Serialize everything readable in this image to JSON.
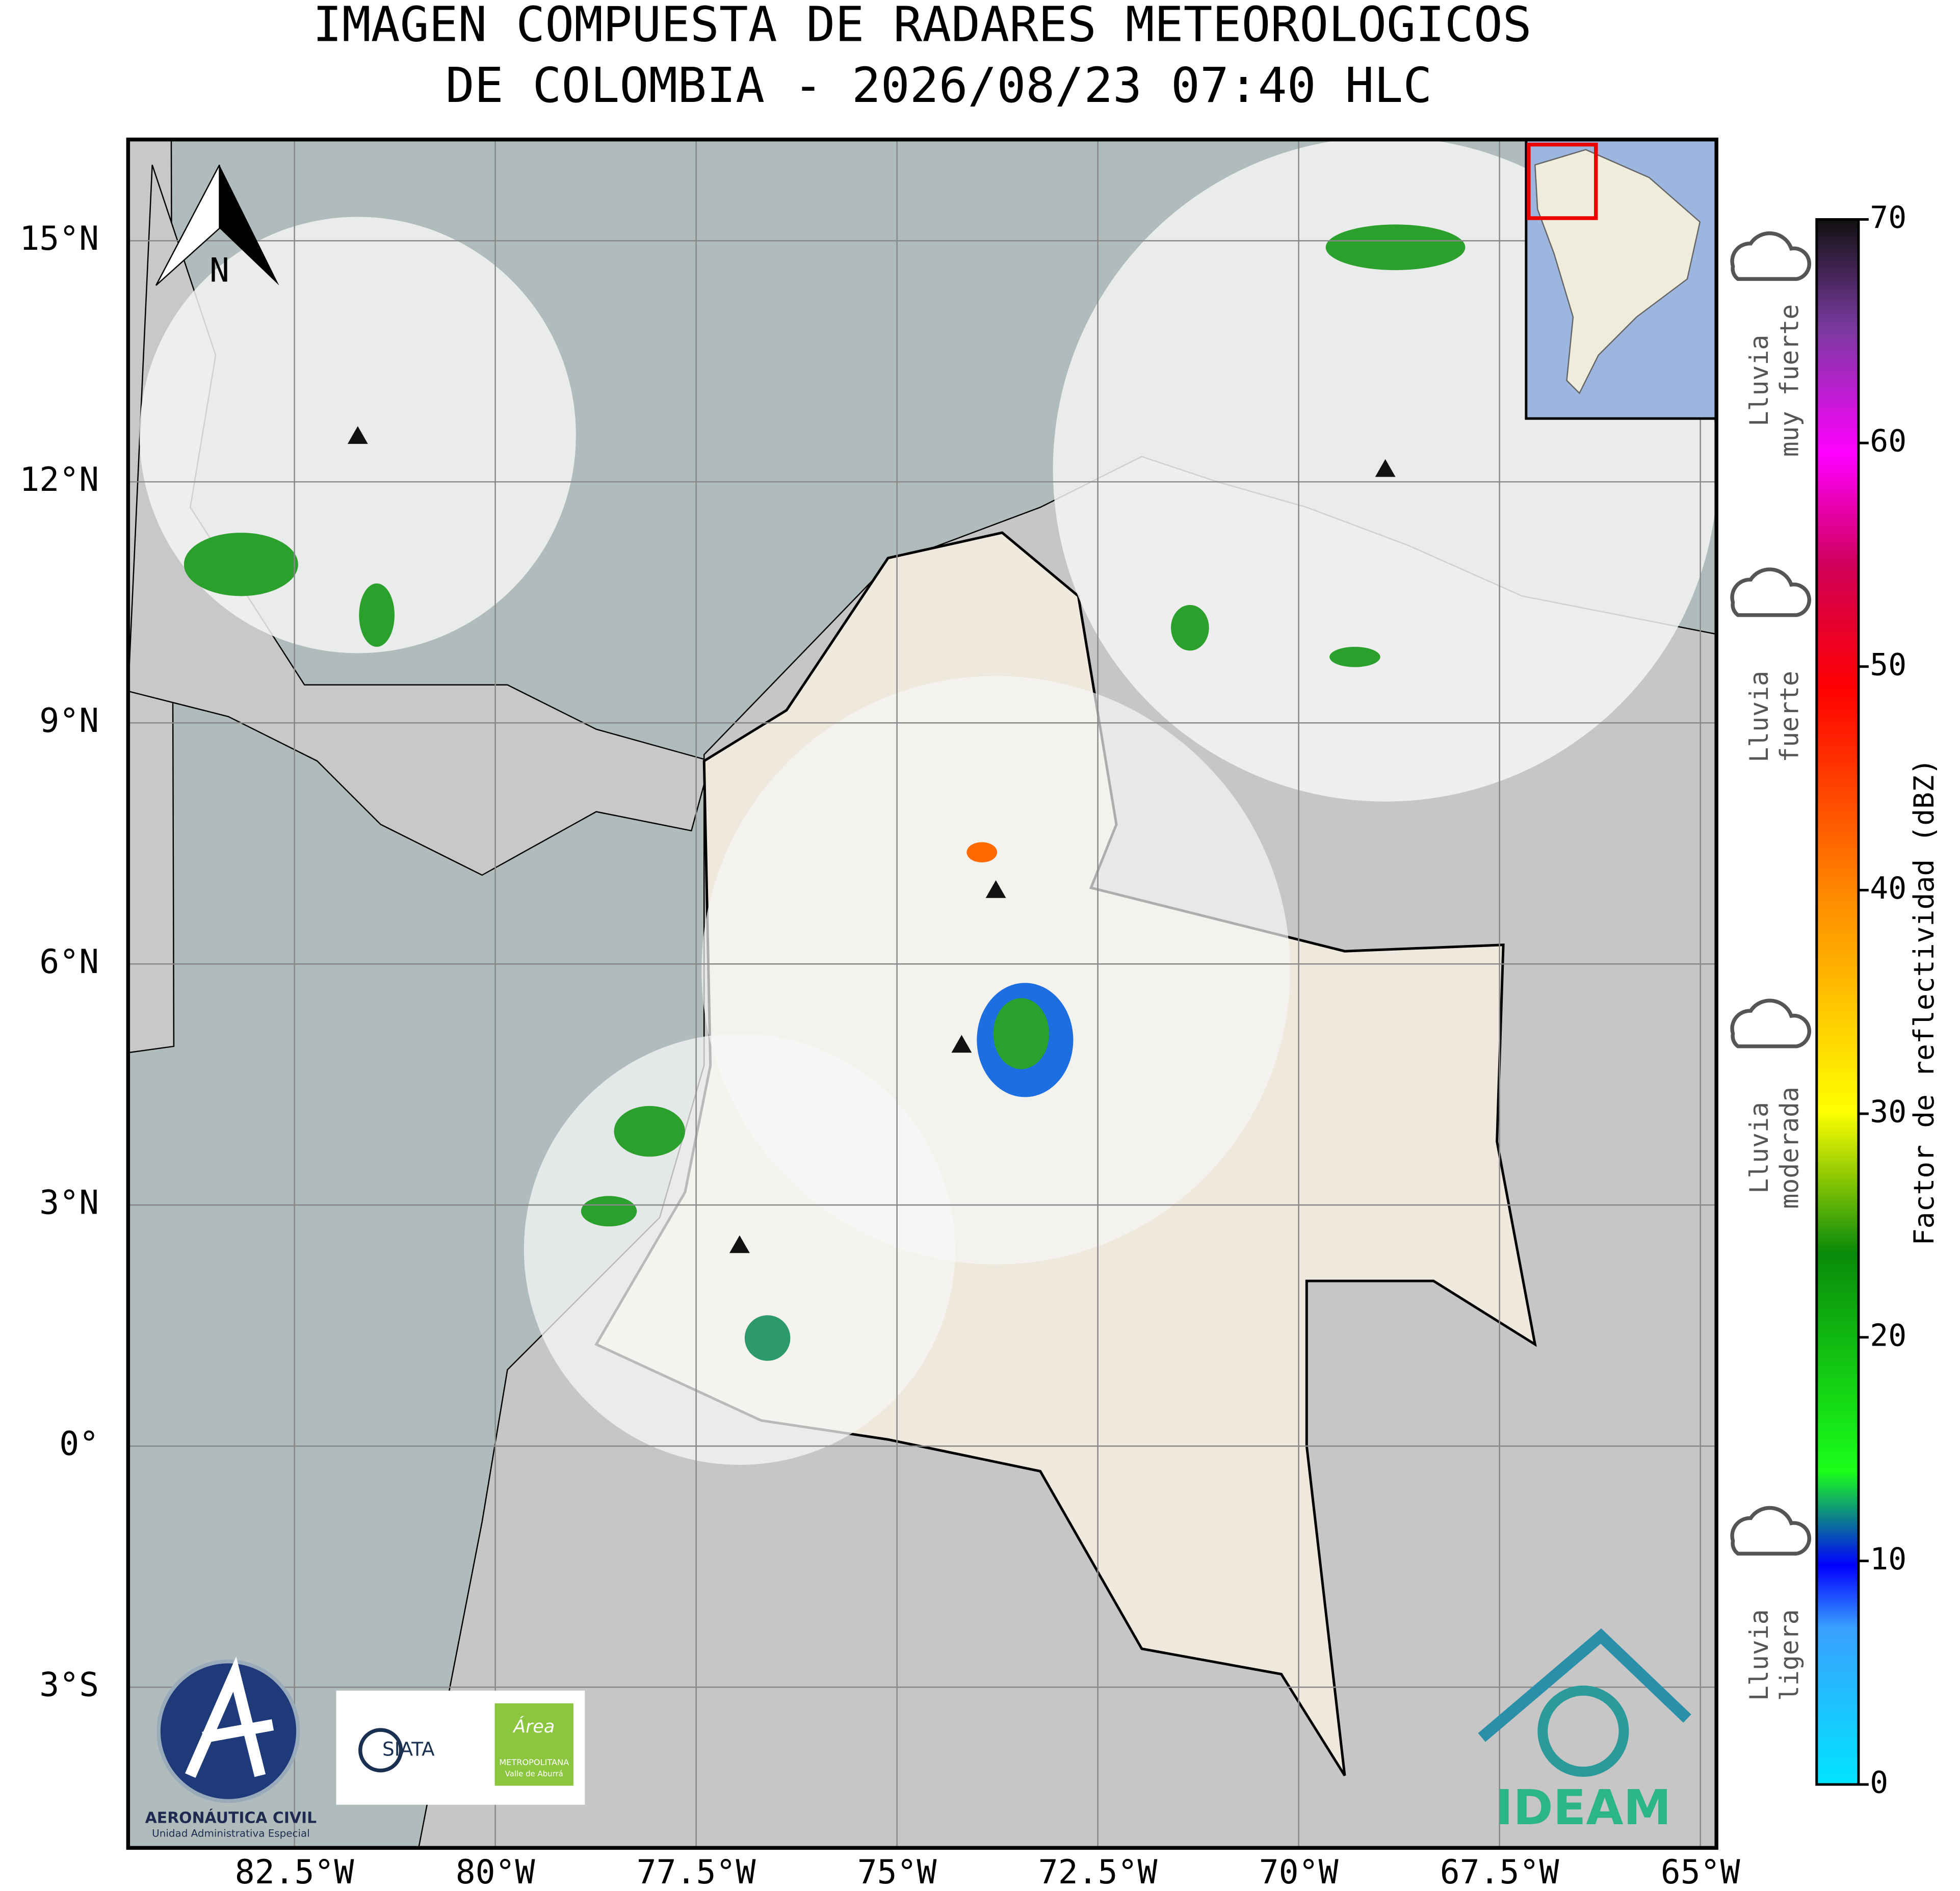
{
  "title": [
    "IMAGEN COMPUESTA DE RADARES METEOROLOGICOS",
    "DE COLOMBIA - 2026/08/23 07:40 HLC"
  ],
  "map": {
    "xlim": [
      -84.57,
      -64.8
    ],
    "ylim": [
      -5.0,
      16.26
    ],
    "xticks": [
      {
        "value": -82.5,
        "label": "82.5°W"
      },
      {
        "value": -80,
        "label": "80°W"
      },
      {
        "value": -77.5,
        "label": "77.5°W"
      },
      {
        "value": -75,
        "label": "75°W"
      },
      {
        "value": -72.5,
        "label": "72.5°W"
      },
      {
        "value": -70,
        "label": "70°W"
      },
      {
        "value": -67.5,
        "label": "67.5°W"
      },
      {
        "value": -65,
        "label": "65°W"
      }
    ],
    "yticks": [
      {
        "value": 15,
        "label": "15°N"
      },
      {
        "value": 12,
        "label": "12°N"
      },
      {
        "value": 9,
        "label": "9°N"
      },
      {
        "value": 6,
        "label": "6°N"
      },
      {
        "value": 3,
        "label": "3°N"
      },
      {
        "value": 0,
        "label": "0°"
      },
      {
        "value": -3,
        "label": "3°S"
      }
    ],
    "north": "N"
  },
  "colorbar": {
    "label": "Factor de reflectividad (dBZ)",
    "lim": [
      0,
      70
    ],
    "ticks": [
      0,
      10,
      20,
      30,
      40,
      50,
      60,
      70
    ]
  },
  "intensity": [
    [
      "Lluvia",
      "muy fuerte"
    ],
    [
      "Lluvia",
      "fuerte"
    ],
    [
      "Lluvia",
      "moderada"
    ],
    [
      "Lluvia",
      "ligera"
    ]
  ],
  "logos": {
    "aeronautica": [
      "AERONÁUTICA CIVIL",
      "Unidad Administrativa Especial"
    ],
    "siata": "SIATA",
    "area": [
      "Área",
      "METROPOLITANA",
      "Valle de Aburrá"
    ],
    "ideam": "IDEAM"
  }
}
